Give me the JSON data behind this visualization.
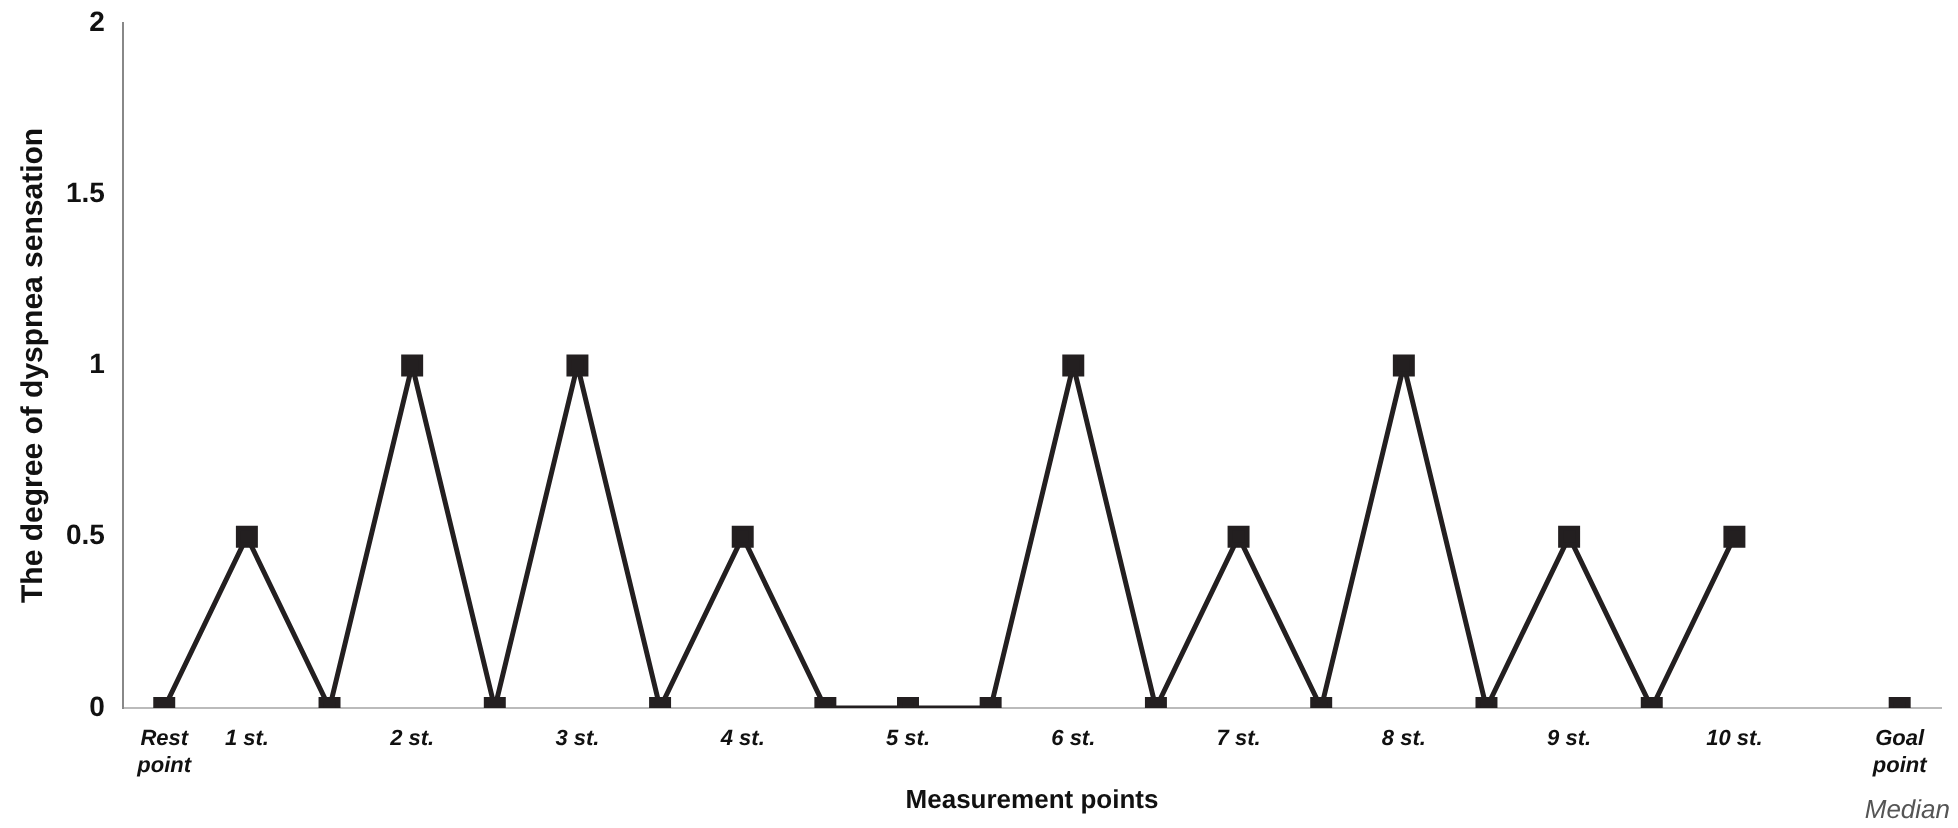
{
  "chart_data": {
    "type": "line",
    "xlabel": "Measurement points",
    "ylabel": "The degree of dyspnea sensation",
    "categories": [
      "Rest point",
      "1 st.",
      null,
      "2 st.",
      null,
      "3 st.",
      null,
      "4 st.",
      null,
      "5 st.",
      null,
      "6 st.",
      null,
      "7 st.",
      null,
      "8 st.",
      null,
      "9 st.",
      null,
      "10 st.",
      null,
      "Goal point"
    ],
    "series": [
      {
        "color": "#231f20",
        "values": [
          0,
          0.5,
          0,
          1,
          0,
          1,
          0,
          0.5,
          0,
          0,
          0,
          1,
          0,
          0.5,
          0,
          1,
          0,
          0.5,
          0,
          0.5,
          null,
          0
        ]
      }
    ],
    "ylim": [
      0,
      2
    ],
    "yticks": [
      0,
      0.5,
      1,
      1.5,
      2
    ],
    "grid": false,
    "legend": false,
    "marker": "square",
    "line_style": "solid",
    "annotations": [
      "Median"
    ]
  }
}
